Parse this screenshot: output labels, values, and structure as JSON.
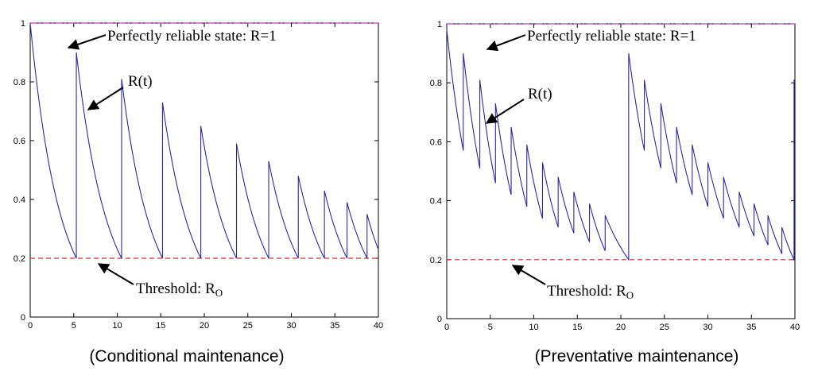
{
  "chart_data": [
    {
      "type": "line",
      "title": "",
      "caption": "(Conditional maintenance)",
      "xlim": [
        0,
        40
      ],
      "ylim": [
        0,
        1
      ],
      "xticks": [
        "0",
        "5",
        "10",
        "15",
        "20",
        "25",
        "30",
        "35",
        "40"
      ],
      "yticks": [
        "0",
        "0.2",
        "0.4",
        "0.6",
        "0.8",
        "1"
      ],
      "reference_lines": [
        {
          "name": "Perfectly reliable state",
          "y": 1,
          "color": "#cc33cc",
          "style": "dash-dot"
        },
        {
          "name": "Threshold",
          "y": 0.2,
          "color": "#cc3333",
          "style": "dashed"
        }
      ],
      "series": [
        {
          "name": "R(t)",
          "color": "#2a2aa8",
          "cycles": [
            {
              "t_start": 0,
              "t_end": 5.3,
              "r_start": 1.0,
              "r_end": 0.2
            },
            {
              "t_start": 5.3,
              "t_end": 10.5,
              "r_start": 0.9,
              "r_end": 0.2
            },
            {
              "t_start": 10.5,
              "t_end": 15.2,
              "r_start": 0.81,
              "r_end": 0.2
            },
            {
              "t_start": 15.2,
              "t_end": 19.6,
              "r_start": 0.73,
              "r_end": 0.2
            },
            {
              "t_start": 19.6,
              "t_end": 23.7,
              "r_start": 0.65,
              "r_end": 0.2
            },
            {
              "t_start": 23.7,
              "t_end": 27.4,
              "r_start": 0.59,
              "r_end": 0.2
            },
            {
              "t_start": 27.4,
              "t_end": 30.8,
              "r_start": 0.53,
              "r_end": 0.2
            },
            {
              "t_start": 30.8,
              "t_end": 33.8,
              "r_start": 0.48,
              "r_end": 0.2
            },
            {
              "t_start": 33.8,
              "t_end": 36.4,
              "r_start": 0.43,
              "r_end": 0.2
            },
            {
              "t_start": 36.4,
              "t_end": 38.7,
              "r_start": 0.39,
              "r_end": 0.2
            },
            {
              "t_start": 38.7,
              "t_end": 40.0,
              "r_start": 0.35,
              "r_end": 0.23
            }
          ]
        }
      ],
      "annotations": {
        "reliable": "Perfectly reliable state: R=1",
        "curve": "R(t)",
        "threshold": "Threshold: R",
        "threshold_sub": "O"
      }
    },
    {
      "type": "line",
      "title": "",
      "caption": "(Preventative maintenance)",
      "xlim": [
        0,
        40
      ],
      "ylim": [
        0,
        1
      ],
      "xticks": [
        "0",
        "5",
        "10",
        "15",
        "20",
        "25",
        "30",
        "35",
        "40"
      ],
      "yticks": [
        "0",
        "0.2",
        "0.4",
        "0.6",
        "0.8",
        "1"
      ],
      "reference_lines": [
        {
          "name": "Perfectly reliable state",
          "y": 1,
          "color": "#cc33cc",
          "style": "dash-dot"
        },
        {
          "name": "Threshold",
          "y": 0.2,
          "color": "#cc3333",
          "style": "dashed"
        }
      ],
      "series": [
        {
          "name": "R(t)",
          "color": "#2a2aa8",
          "cycles": [
            {
              "t_start": 0,
              "t_end": 1.9,
              "r_start": 0.98,
              "r_end": 0.57
            },
            {
              "t_start": 1.9,
              "t_end": 3.8,
              "r_start": 0.9,
              "r_end": 0.51
            },
            {
              "t_start": 3.8,
              "t_end": 5.6,
              "r_start": 0.81,
              "r_end": 0.46
            },
            {
              "t_start": 5.6,
              "t_end": 7.4,
              "r_start": 0.73,
              "r_end": 0.42
            },
            {
              "t_start": 7.4,
              "t_end": 9.2,
              "r_start": 0.65,
              "r_end": 0.38
            },
            {
              "t_start": 9.2,
              "t_end": 11.0,
              "r_start": 0.59,
              "r_end": 0.34
            },
            {
              "t_start": 11.0,
              "t_end": 12.8,
              "r_start": 0.53,
              "r_end": 0.31
            },
            {
              "t_start": 12.8,
              "t_end": 14.6,
              "r_start": 0.48,
              "r_end": 0.29
            },
            {
              "t_start": 14.6,
              "t_end": 16.4,
              "r_start": 0.43,
              "r_end": 0.26
            },
            {
              "t_start": 16.4,
              "t_end": 18.2,
              "r_start": 0.39,
              "r_end": 0.23
            },
            {
              "t_start": 18.2,
              "t_end": 20.9,
              "r_start": 0.35,
              "r_end": 0.2
            },
            {
              "t_start": 20.9,
              "t_end": 22.7,
              "r_start": 0.9,
              "r_end": 0.57
            },
            {
              "t_start": 22.7,
              "t_end": 24.6,
              "r_start": 0.81,
              "r_end": 0.51
            },
            {
              "t_start": 24.6,
              "t_end": 26.4,
              "r_start": 0.73,
              "r_end": 0.46
            },
            {
              "t_start": 26.4,
              "t_end": 28.2,
              "r_start": 0.65,
              "r_end": 0.42
            },
            {
              "t_start": 28.2,
              "t_end": 30.0,
              "r_start": 0.59,
              "r_end": 0.38
            },
            {
              "t_start": 30.0,
              "t_end": 31.8,
              "r_start": 0.53,
              "r_end": 0.34
            },
            {
              "t_start": 31.8,
              "t_end": 33.6,
              "r_start": 0.48,
              "r_end": 0.31
            },
            {
              "t_start": 33.6,
              "t_end": 35.3,
              "r_start": 0.43,
              "r_end": 0.28
            },
            {
              "t_start": 35.3,
              "t_end": 36.9,
              "r_start": 0.39,
              "r_end": 0.25
            },
            {
              "t_start": 36.9,
              "t_end": 38.5,
              "r_start": 0.35,
              "r_end": 0.22
            },
            {
              "t_start": 38.5,
              "t_end": 39.9,
              "r_start": 0.31,
              "r_end": 0.2
            },
            {
              "t_start": 39.9,
              "t_end": 40.0,
              "r_start": 0.81,
              "r_end": 0.8
            }
          ]
        }
      ],
      "annotations": {
        "reliable": "Perfectly reliable state: R=1",
        "curve": "R(t)",
        "threshold": "Threshold: R",
        "threshold_sub": "O"
      }
    }
  ]
}
